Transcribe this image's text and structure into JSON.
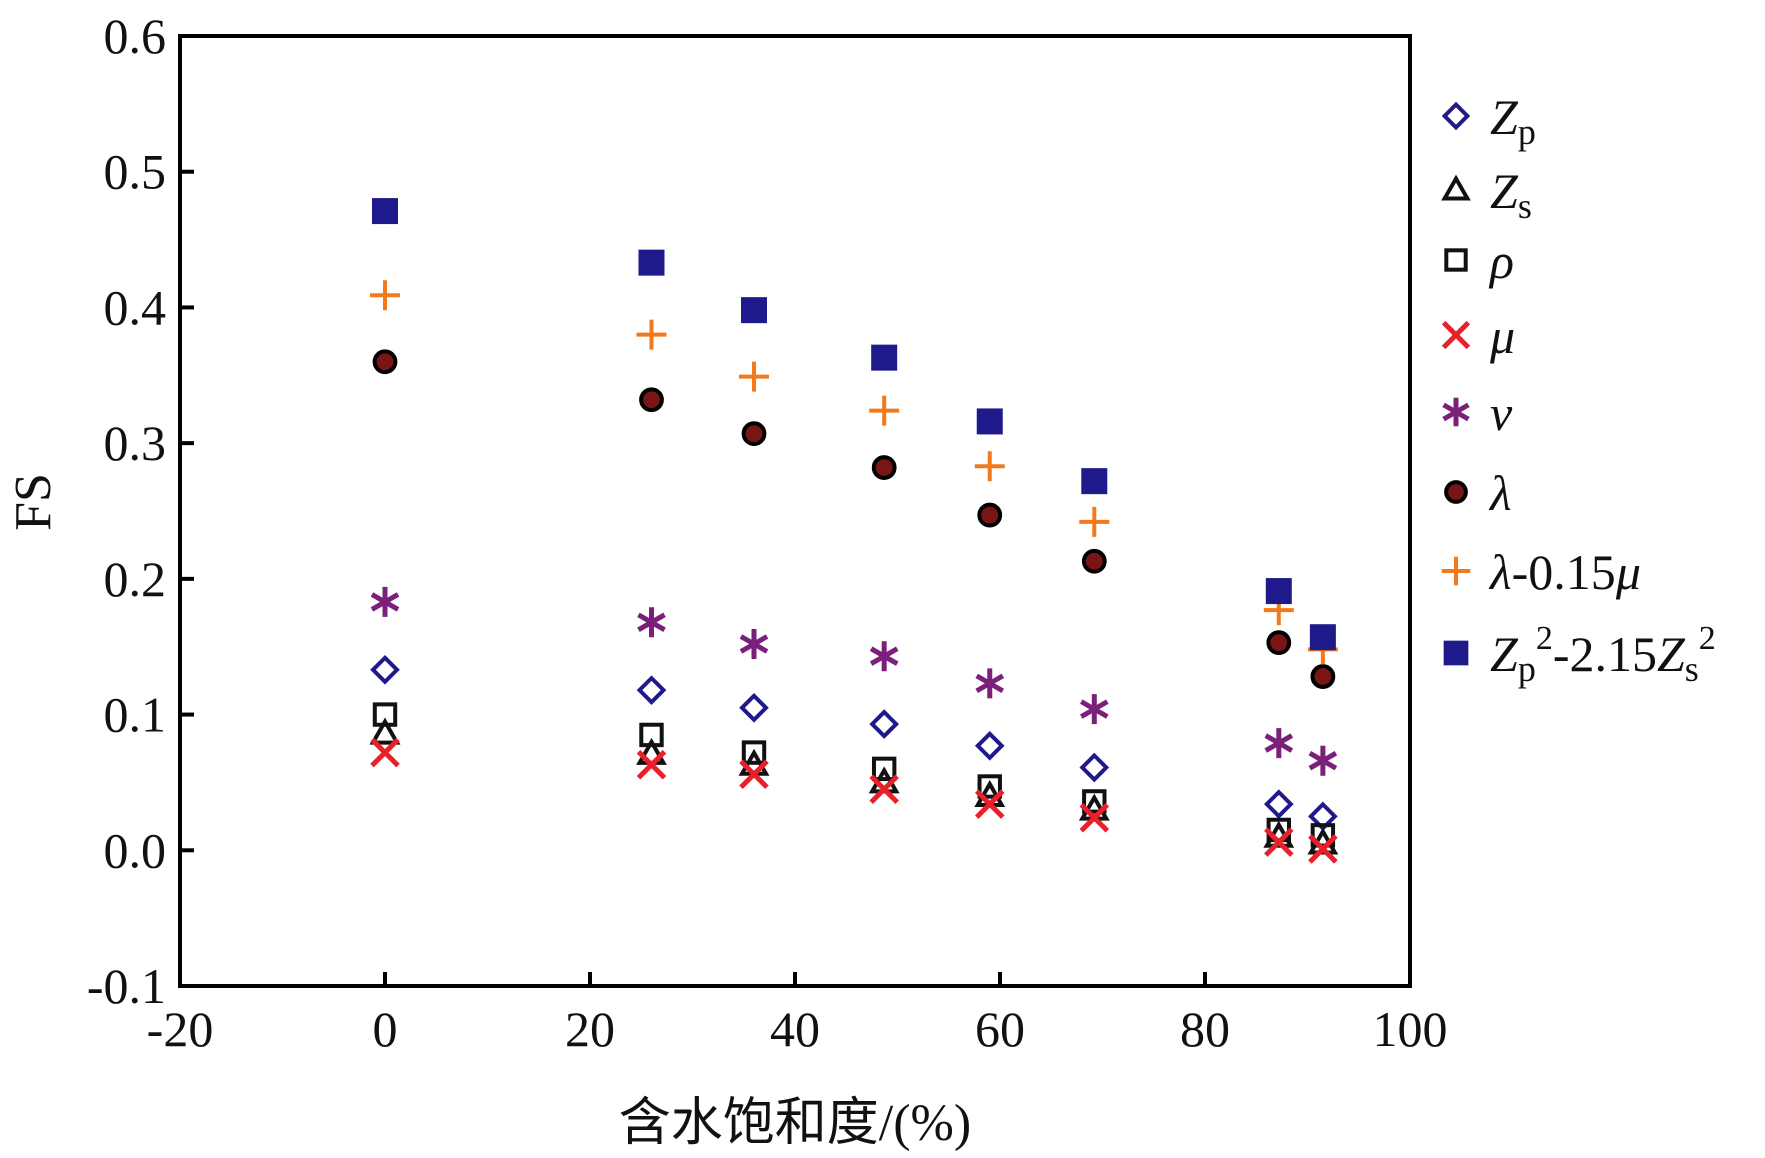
{
  "chart_data": {
    "type": "scatter",
    "title": "",
    "xlabel": "含水饱和度/(%)",
    "ylabel": "FS",
    "xlim": [
      -20,
      100
    ],
    "ylim": [
      -0.1,
      0.6
    ],
    "xticks": [
      "-20",
      "0",
      "20",
      "40",
      "60",
      "80",
      "100"
    ],
    "yticks": [
      "-0.1",
      "0.0",
      "0.1",
      "0.2",
      "0.3",
      "0.4",
      "0.5",
      "0.6"
    ],
    "legend_position": "right",
    "x": [
      0,
      26,
      36,
      48.7,
      59,
      69.2,
      87.2,
      91.5
    ],
    "series": [
      {
        "key": "zp",
        "marker": "diamond",
        "color": "#1f1a8c",
        "legend": {
          "main": "Z",
          "sub": "p"
        },
        "values": [
          0.133,
          0.118,
          0.105,
          0.093,
          0.077,
          0.061,
          0.034,
          0.025
        ]
      },
      {
        "key": "zs",
        "marker": "triangle",
        "color": "#111111",
        "legend": {
          "main": "Z",
          "sub": "s"
        },
        "values": [
          0.086,
          0.071,
          0.063,
          0.05,
          0.04,
          0.03,
          0.01,
          0.005
        ]
      },
      {
        "key": "rho",
        "marker": "square-open",
        "color": "#111111",
        "legend": {
          "main": "ρ"
        },
        "values": [
          0.1,
          0.085,
          0.072,
          0.06,
          0.047,
          0.036,
          0.015,
          0.011
        ]
      },
      {
        "key": "mu",
        "marker": "x",
        "color": "#e8202a",
        "legend": {
          "main": "μ"
        },
        "values": [
          0.072,
          0.063,
          0.056,
          0.045,
          0.034,
          0.024,
          0.006,
          0.001
        ]
      },
      {
        "key": "nu",
        "marker": "asterisk",
        "color": "#7a1f7a",
        "legend": {
          "main": "ν"
        },
        "values": [
          0.183,
          0.168,
          0.152,
          0.143,
          0.123,
          0.104,
          0.079,
          0.066
        ]
      },
      {
        "key": "lambda",
        "marker": "circle",
        "color": "#7a1515",
        "legend": {
          "main": "λ"
        },
        "values": [
          0.36,
          0.332,
          0.307,
          0.282,
          0.247,
          0.213,
          0.153,
          0.128
        ]
      },
      {
        "key": "lmu",
        "marker": "plus",
        "color": "#f27a1c",
        "legend": {
          "main": "λ",
          "rest": "-0.15",
          "tail": "μ"
        },
        "values": [
          0.409,
          0.38,
          0.349,
          0.324,
          0.283,
          0.242,
          0.177,
          0.148
        ]
      },
      {
        "key": "zcombo",
        "marker": "square-filled",
        "color": "#1f1a8c",
        "legend": {
          "combo": [
            "Z",
            "p",
            "2",
            "-2.15",
            "Z",
            "s",
            "2"
          ]
        },
        "values": [
          0.471,
          0.433,
          0.398,
          0.363,
          0.316,
          0.272,
          0.191,
          0.157
        ]
      }
    ]
  }
}
